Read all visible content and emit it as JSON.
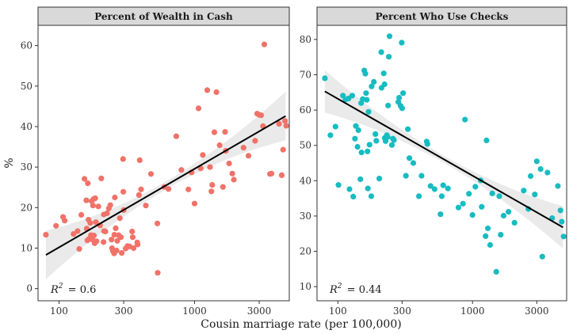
{
  "chart_data": [
    {
      "type": "scatter",
      "title": "Percent of Wealth in Cash",
      "xlabel": "Cousin marriage rate (per 100,000)",
      "ylabel": "%",
      "x_scale": "log10",
      "xlim": [
        70,
        5000
      ],
      "ylim": [
        -3,
        65
      ],
      "x_ticks": [
        100,
        300,
        1000,
        3000
      ],
      "x_tick_labels": [
        "100",
        "300",
        "1000",
        "3000"
      ],
      "y_ticks": [
        0,
        10,
        20,
        30,
        40,
        50,
        60
      ],
      "y_tick_labels": [
        "0",
        "10",
        "20",
        "30",
        "40",
        "50",
        "60"
      ],
      "point_color": "#f07268",
      "fit": {
        "x": [
          80,
          4700
        ],
        "y": [
          8.3,
          42.6
        ]
      },
      "r2_prefix": "R",
      "r2_exponent": "2",
      "r2_value": "=  0.6",
      "points": [
        [
          80,
          13.3
        ],
        [
          95,
          15.5
        ],
        [
          107,
          17.7
        ],
        [
          110,
          16.8
        ],
        [
          128,
          13.5
        ],
        [
          137,
          14.2
        ],
        [
          141,
          9.8
        ],
        [
          146,
          18.2
        ],
        [
          154,
          27.1
        ],
        [
          159,
          21.8
        ],
        [
          160,
          14.8
        ],
        [
          162,
          11.9
        ],
        [
          163,
          26
        ],
        [
          165,
          17
        ],
        [
          167,
          12.3
        ],
        [
          170,
          16.2
        ],
        [
          172,
          13.2
        ],
        [
          174,
          21.6
        ],
        [
          176,
          12.1
        ],
        [
          178,
          20.5
        ],
        [
          180,
          22.1
        ],
        [
          181,
          13.1
        ],
        [
          183,
          11.2
        ],
        [
          185,
          22.3
        ],
        [
          187,
          16.4
        ],
        [
          189,
          11.7
        ],
        [
          195,
          20.3
        ],
        [
          201,
          15.6
        ],
        [
          205,
          27.2
        ],
        [
          213,
          11.5
        ],
        [
          214,
          18.3
        ],
        [
          215,
          14.2
        ],
        [
          220,
          14.1
        ],
        [
          226,
          18.6
        ],
        [
          233,
          19.8
        ],
        [
          239,
          20.6
        ],
        [
          244,
          12.1
        ],
        [
          246,
          10
        ],
        [
          250,
          9.3
        ],
        [
          255,
          8.7
        ],
        [
          256,
          13.3
        ],
        [
          258,
          22.5
        ],
        [
          262,
          14.9
        ],
        [
          266,
          9.4
        ],
        [
          269,
          11.8
        ],
        [
          275,
          13.2
        ],
        [
          281,
          17.4
        ],
        [
          286,
          12.7
        ],
        [
          290,
          8.8
        ],
        [
          297,
          32
        ],
        [
          298,
          23.9
        ],
        [
          300,
          19.4
        ],
        [
          310,
          9.9
        ],
        [
          320,
          10.5
        ],
        [
          331,
          10.4
        ],
        [
          346,
          14.1
        ],
        [
          350,
          12.7
        ],
        [
          355,
          10
        ],
        [
          378,
          11.4
        ],
        [
          380,
          10.9
        ],
        [
          389,
          23.1
        ],
        [
          394,
          31.7
        ],
        [
          403,
          24.5
        ],
        [
          437,
          20.5
        ],
        [
          477,
          28.3
        ],
        [
          532,
          16.1
        ],
        [
          535,
          3.9
        ],
        [
          600,
          25.1
        ],
        [
          642,
          24.6
        ],
        [
          733,
          37.6
        ],
        [
          800,
          29.3
        ],
        [
          900,
          24.5
        ],
        [
          950,
          28.7
        ],
        [
          1000,
          21
        ],
        [
          1070,
          44.5
        ],
        [
          1110,
          29.7
        ],
        [
          1150,
          33
        ],
        [
          1240,
          49
        ],
        [
          1300,
          30
        ],
        [
          1330,
          24
        ],
        [
          1400,
          38.6
        ],
        [
          1450,
          48.5
        ],
        [
          1530,
          35.4
        ],
        [
          1620,
          25.1
        ],
        [
          1680,
          38.7
        ],
        [
          1700,
          34
        ],
        [
          1800,
          30.9
        ],
        [
          1900,
          28.4
        ],
        [
          1950,
          26.9
        ],
        [
          2300,
          34.8
        ],
        [
          2500,
          32.8
        ],
        [
          2800,
          36.5
        ],
        [
          3000,
          42.9
        ],
        [
          3100,
          42.8
        ],
        [
          3200,
          40.1
        ],
        [
          3270,
          60.3
        ],
        [
          3600,
          28.3
        ],
        [
          4200,
          40.7
        ],
        [
          4500,
          34.3
        ],
        [
          4650,
          41.4
        ],
        [
          4750,
          40.2
        ],
        [
          4400,
          28
        ],
        [
          3700,
          28.4
        ],
        [
          2900,
          43.2
        ],
        [
          1350,
          25.6
        ]
      ]
    },
    {
      "type": "scatter",
      "title": "Percent Who Use Checks",
      "xlabel": "Cousin marriage rate (per 100,000)",
      "ylabel": "%",
      "x_scale": "log10",
      "xlim": [
        70,
        5000
      ],
      "ylim": [
        6,
        84
      ],
      "x_ticks": [
        100,
        300,
        1000,
        3000
      ],
      "x_tick_labels": [
        "100",
        "300",
        "1000",
        "3000"
      ],
      "y_ticks": [
        10,
        20,
        30,
        40,
        50,
        60,
        70,
        80
      ],
      "y_tick_labels": [
        "10",
        "20",
        "30",
        "40",
        "50",
        "60",
        "70",
        "80"
      ],
      "point_color": "#17bcc1",
      "fit": {
        "x": [
          80,
          4700
        ],
        "y": [
          65.3,
          26.8
        ]
      },
      "r2_prefix": "R",
      "r2_exponent": "2",
      "r2_value": "=  0.44",
      "points": [
        [
          80,
          69
        ],
        [
          88,
          52.9
        ],
        [
          96,
          55.3
        ],
        [
          101,
          38.8
        ],
        [
          109,
          64.1
        ],
        [
          114,
          63
        ],
        [
          120,
          63.3
        ],
        [
          122,
          37.6
        ],
        [
          128,
          64.1
        ],
        [
          130,
          35.5
        ],
        [
          134,
          51.9
        ],
        [
          136,
          55.5
        ],
        [
          140,
          49.6
        ],
        [
          142,
          54.3
        ],
        [
          147,
          40.4
        ],
        [
          149,
          62
        ],
        [
          150,
          48
        ],
        [
          153,
          63.1
        ],
        [
          157,
          71.2
        ],
        [
          160,
          70.3
        ],
        [
          162,
          64.8
        ],
        [
          164,
          62.9
        ],
        [
          166,
          48.3
        ],
        [
          167,
          37.8
        ],
        [
          169,
          59.5
        ],
        [
          172,
          50.2
        ],
        [
          177,
          35.6
        ],
        [
          178,
          66.7
        ],
        [
          185,
          68
        ],
        [
          190,
          53.2
        ],
        [
          193,
          51.3
        ],
        [
          203,
          40.6
        ],
        [
          210,
          76.4
        ],
        [
          211,
          66.3
        ],
        [
          219,
          70.4
        ],
        [
          222,
          67.3
        ],
        [
          223,
          52.1
        ],
        [
          226,
          51.2
        ],
        [
          231,
          52.9
        ],
        [
          234,
          52.4
        ],
        [
          236,
          61.3
        ],
        [
          239,
          75.1
        ],
        [
          242,
          80.9
        ],
        [
          252,
          50.1
        ],
        [
          256,
          51.9
        ],
        [
          261,
          51.5
        ],
        [
          281,
          62.3
        ],
        [
          285,
          63.5
        ],
        [
          292,
          61.2
        ],
        [
          298,
          79.1
        ],
        [
          300,
          60.5
        ],
        [
          305,
          64.8
        ],
        [
          320,
          41.4
        ],
        [
          331,
          54.6
        ],
        [
          340,
          46.4
        ],
        [
          363,
          45
        ],
        [
          400,
          35.6
        ],
        [
          418,
          41.4
        ],
        [
          457,
          51.1
        ],
        [
          462,
          50.4
        ],
        [
          488,
          38.5
        ],
        [
          523,
          37.6
        ],
        [
          578,
          30.5
        ],
        [
          591,
          35.6
        ],
        [
          605,
          38.7
        ],
        [
          657,
          37.8
        ],
        [
          786,
          32.4
        ],
        [
          850,
          33.5
        ],
        [
          879,
          57.3
        ],
        [
          940,
          36.3
        ],
        [
          1000,
          30.3
        ],
        [
          1050,
          38.3
        ],
        [
          1150,
          40.1
        ],
        [
          1170,
          32.6
        ],
        [
          1270,
          51.4
        ],
        [
          1300,
          26.5
        ],
        [
          1350,
          21.8
        ],
        [
          1400,
          36.4
        ],
        [
          1500,
          14.2
        ],
        [
          1580,
          35.6
        ],
        [
          1620,
          24.7
        ],
        [
          1700,
          30.1
        ],
        [
          1850,
          31.2
        ],
        [
          2050,
          28.1
        ],
        [
          2400,
          37.2
        ],
        [
          2700,
          41.3
        ],
        [
          2900,
          36.1
        ],
        [
          3000,
          45.5
        ],
        [
          3200,
          43.3
        ],
        [
          3300,
          18.5
        ],
        [
          3600,
          42.3
        ],
        [
          3900,
          29.4
        ],
        [
          4300,
          38.5
        ],
        [
          4500,
          31.6
        ],
        [
          4600,
          28.4
        ],
        [
          4750,
          24.2
        ],
        [
          1250,
          24.3
        ],
        [
          2600,
          32
        ]
      ]
    }
  ]
}
